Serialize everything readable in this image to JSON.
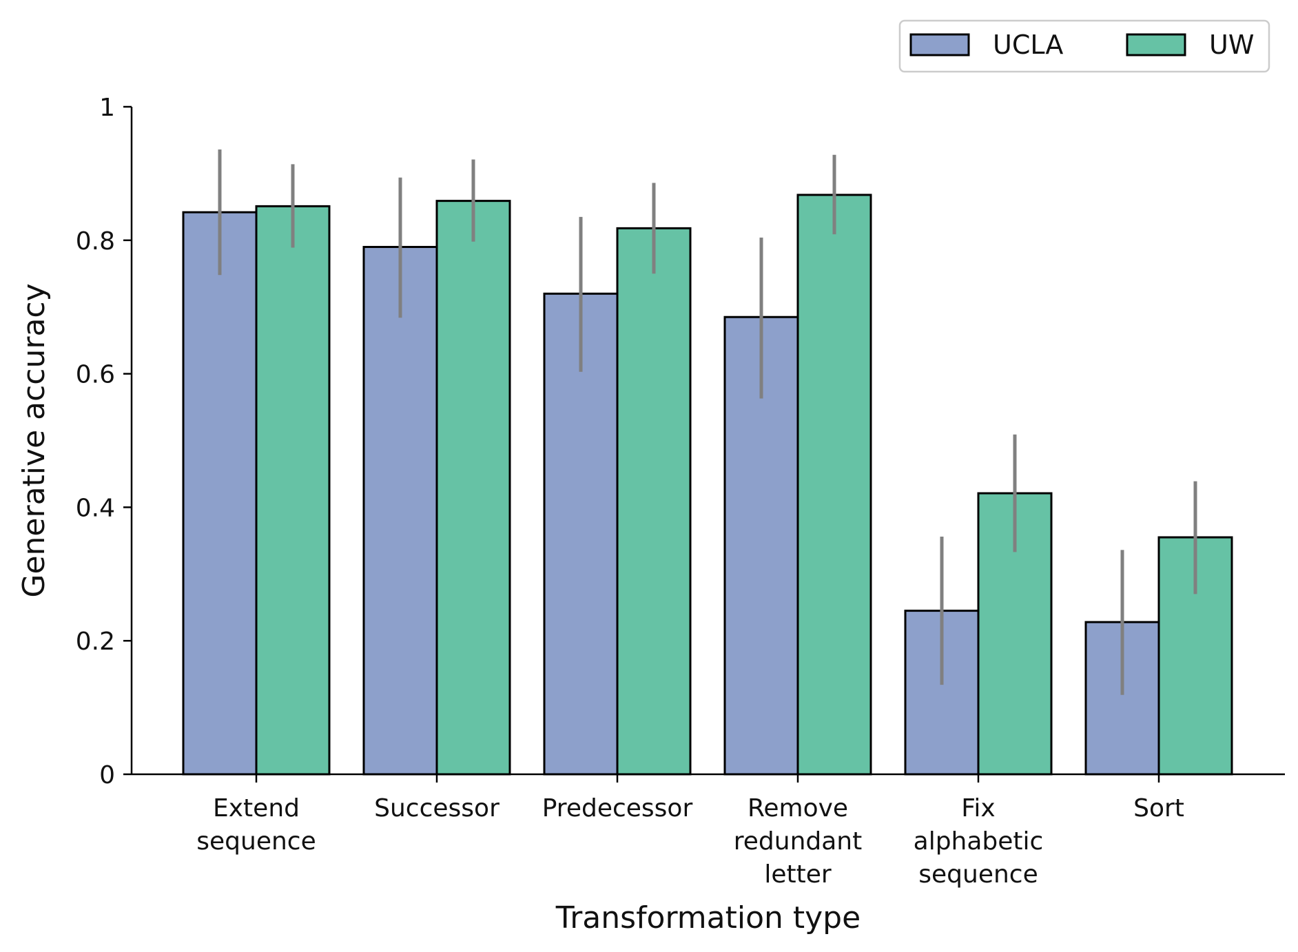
{
  "chart_data": {
    "type": "bar",
    "xlabel": "Transformation type",
    "ylabel": "Generative accuracy",
    "ylim": [
      0,
      1
    ],
    "yticks": [
      0,
      0.2,
      0.4,
      0.6,
      0.8,
      1
    ],
    "ytick_labels": [
      "0",
      "0.2",
      "0.4",
      "0.6",
      "0.8",
      "1"
    ],
    "categories": [
      [
        "Extend",
        "sequence"
      ],
      [
        "Successor"
      ],
      [
        "Predecessor"
      ],
      [
        "Remove",
        "redundant",
        "letter"
      ],
      [
        "Fix",
        "alphabetic",
        "sequence"
      ],
      [
        "Sort"
      ]
    ],
    "series": [
      {
        "name": "UCLA",
        "color": "#8da0cb",
        "values": [
          0.842,
          0.79,
          0.72,
          0.685,
          0.245,
          0.228
        ],
        "err_low": [
          0.748,
          0.684,
          0.603,
          0.563,
          0.134,
          0.119
        ],
        "err_high": [
          0.936,
          0.894,
          0.835,
          0.804,
          0.356,
          0.336
        ]
      },
      {
        "name": "UW",
        "color": "#66c2a5",
        "values": [
          0.851,
          0.859,
          0.818,
          0.868,
          0.421,
          0.355
        ],
        "err_low": [
          0.789,
          0.798,
          0.75,
          0.809,
          0.333,
          0.27
        ],
        "err_high": [
          0.914,
          0.921,
          0.886,
          0.928,
          0.509,
          0.439
        ]
      }
    ],
    "error_bar_color": "#808080",
    "legend_position": "top-right, above plot",
    "grid": false
  }
}
